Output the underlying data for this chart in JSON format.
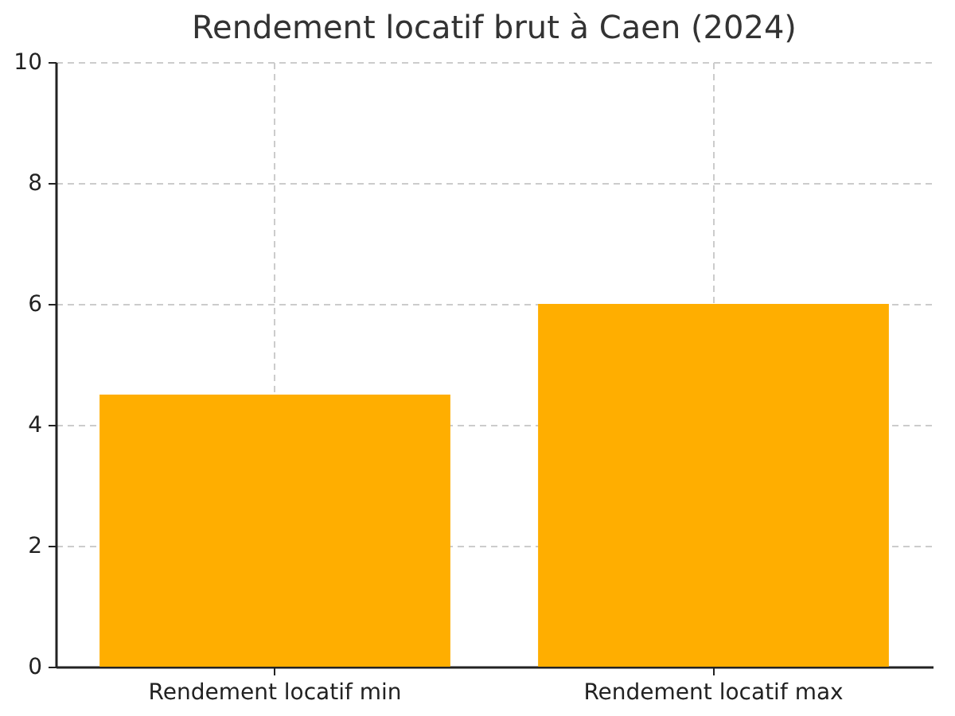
{
  "chart_data": {
    "type": "bar",
    "title": "Rendement locatif brut à Caen (2024)",
    "categories": [
      "Rendement locatif min",
      "Rendement locatif max"
    ],
    "values": [
      4.5,
      6
    ],
    "color": "#ffae00",
    "ylim": [
      0,
      10
    ],
    "yticks": [
      0,
      2,
      4,
      6,
      8,
      10
    ],
    "grid": true
  }
}
